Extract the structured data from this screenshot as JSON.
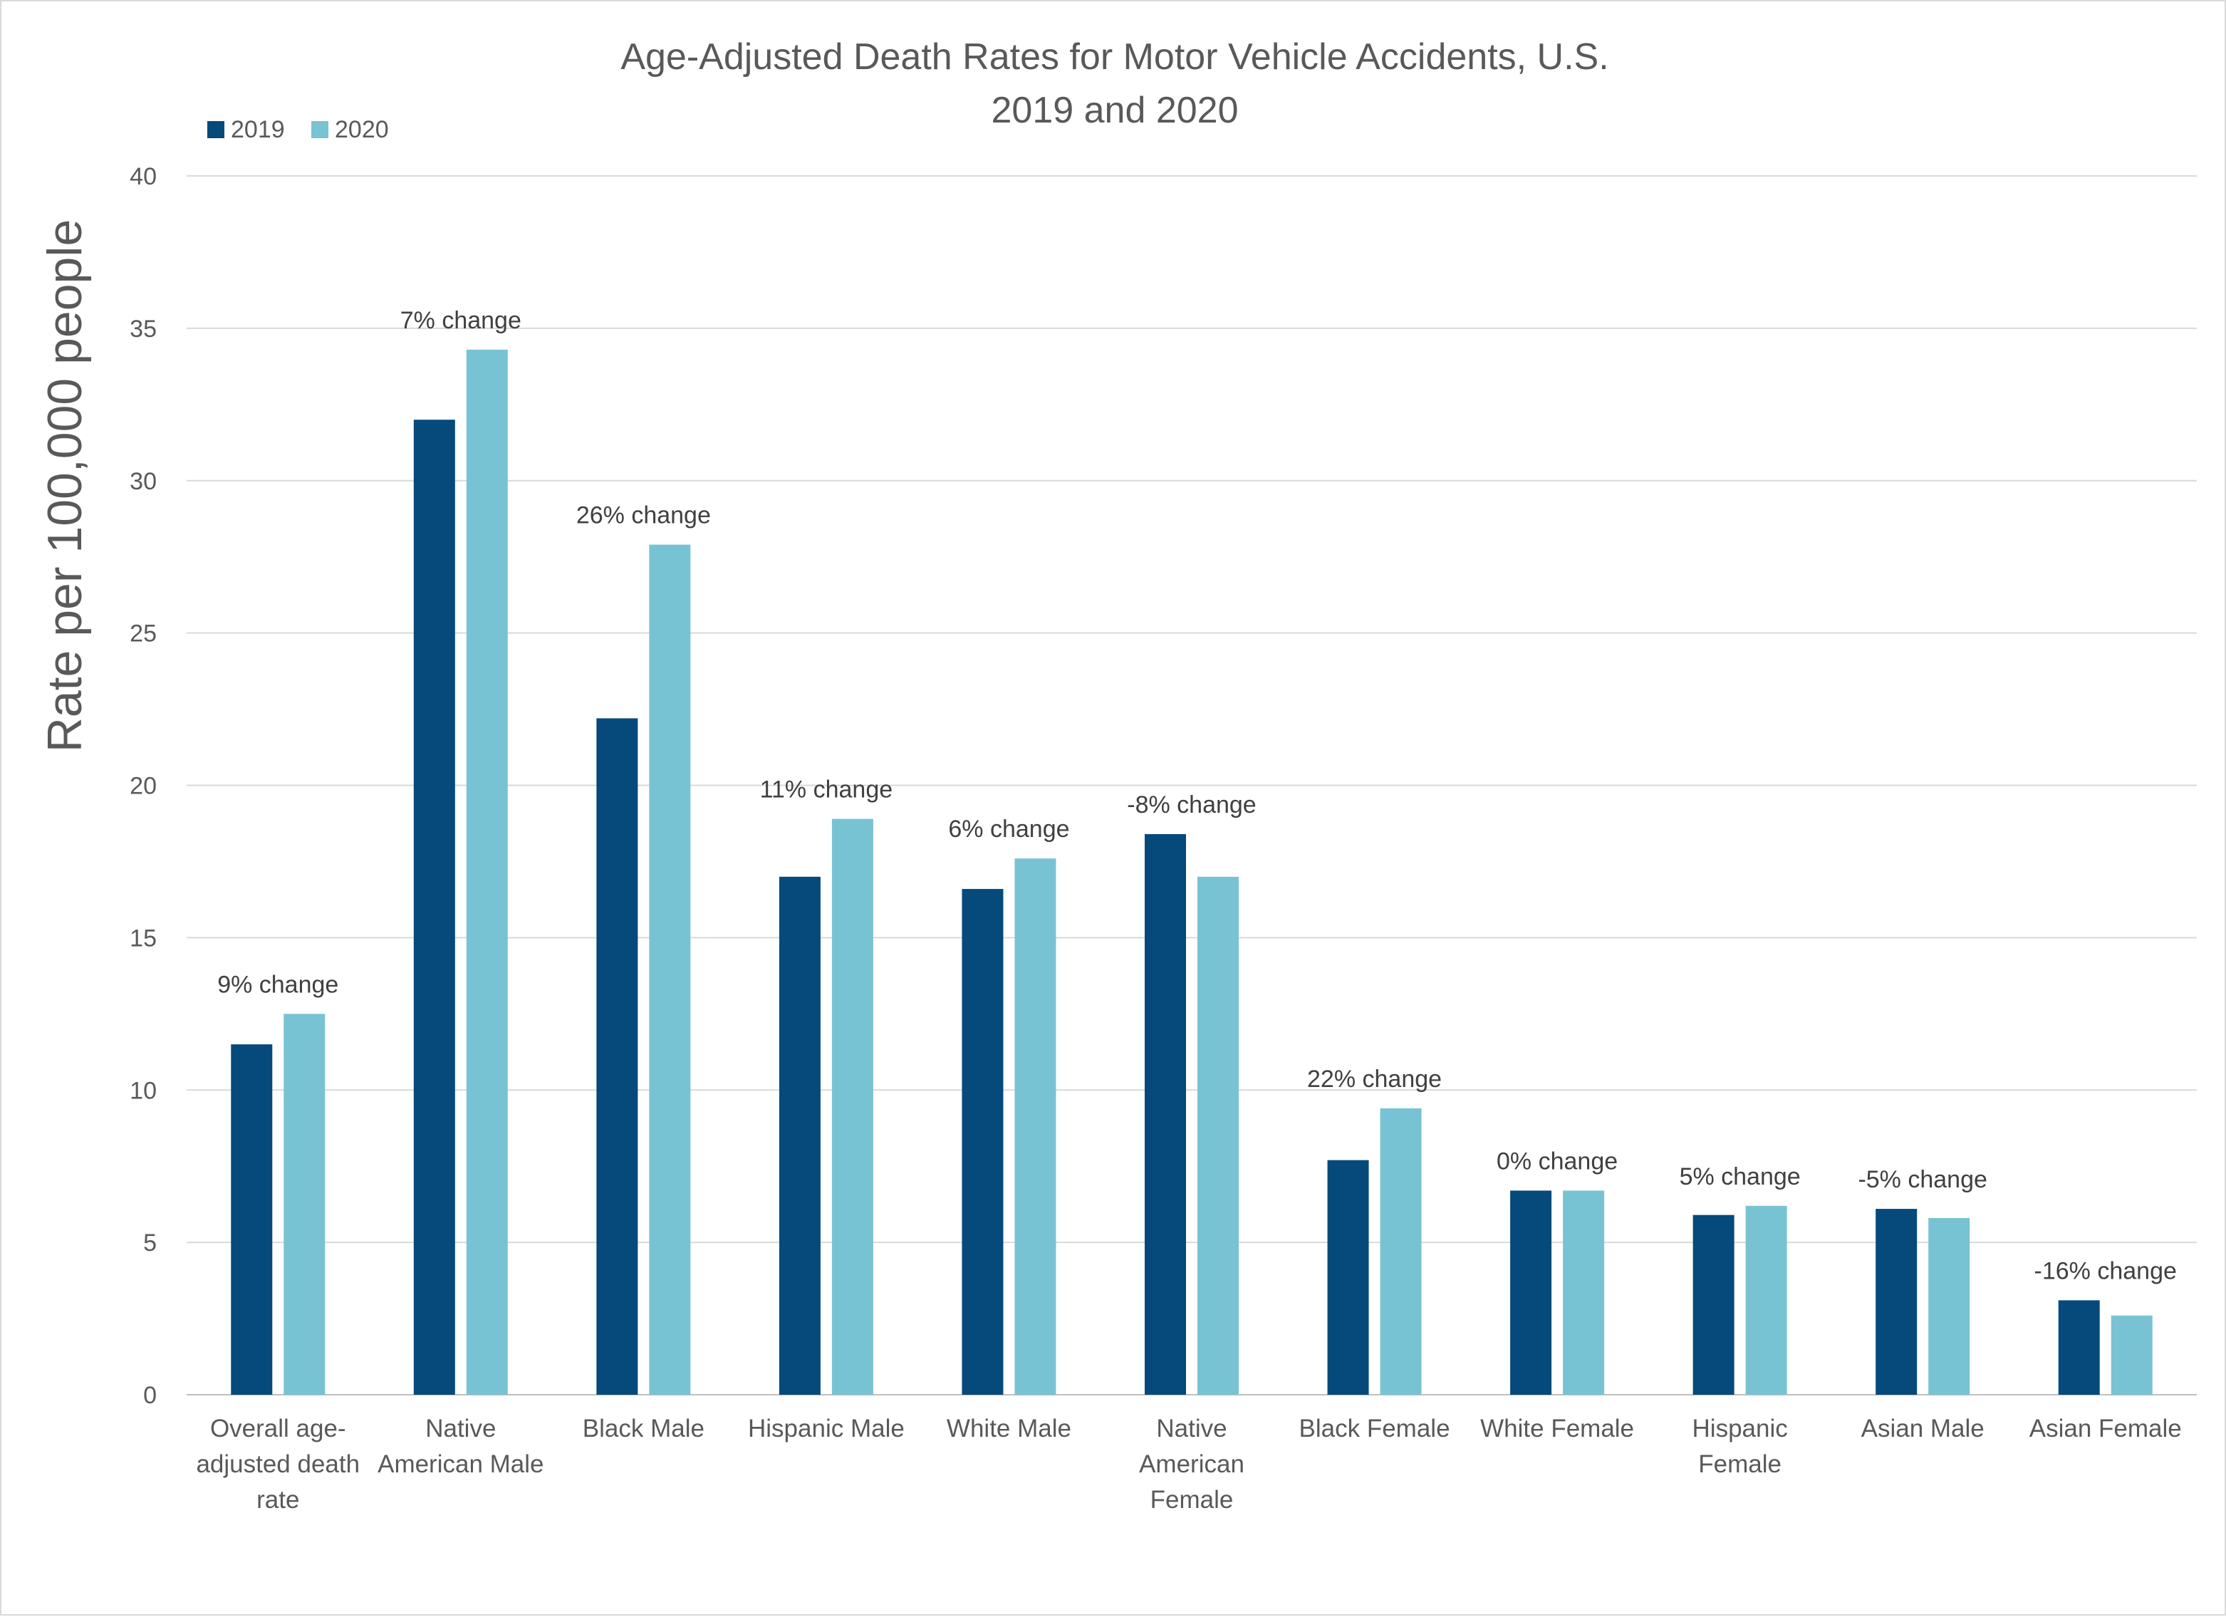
{
  "chart_data": {
    "type": "bar",
    "title": [
      "Age-Adjusted Death Rates for Motor Vehicle Accidents, U.S.",
      "2019 and 2020"
    ],
    "ylabel": "Rate per 100,000 people",
    "xlabel": "",
    "ylim": [
      0,
      40
    ],
    "yticks": [
      0,
      5,
      10,
      15,
      20,
      25,
      30,
      35,
      40
    ],
    "grid": true,
    "legend_position": "top-left",
    "categories": [
      "Overall age-adjusted death rate",
      "Native American Male",
      "Black Male",
      "Hispanic Male",
      "White Male",
      "Native American Female",
      "Black Female",
      "White Female",
      "Hispanic Female",
      "Asian Male",
      "Asian Female"
    ],
    "category_lines": [
      [
        "Overall age-",
        "adjusted death",
        "rate"
      ],
      [
        "Native",
        "American Male"
      ],
      [
        "Black Male"
      ],
      [
        "Hispanic Male"
      ],
      [
        "White Male"
      ],
      [
        "Native",
        "American",
        "Female"
      ],
      [
        "Black Female"
      ],
      [
        "White Female"
      ],
      [
        "Hispanic",
        "Female"
      ],
      [
        "Asian Male"
      ],
      [
        "Asian Female"
      ]
    ],
    "series": [
      {
        "name": "2019",
        "color": "#054a7a",
        "values": [
          11.5,
          32.0,
          22.2,
          17.0,
          16.6,
          18.4,
          7.7,
          6.7,
          5.9,
          6.1,
          3.1
        ]
      },
      {
        "name": "2020",
        "color": "#78c3d3",
        "values": [
          12.5,
          34.3,
          27.9,
          18.9,
          17.6,
          17.0,
          9.4,
          6.7,
          6.2,
          5.8,
          2.6
        ]
      }
    ],
    "annotations": [
      "9% change",
      "7% change",
      "26% change",
      "11% change",
      "6% change",
      "-8% change",
      "22% change",
      "0% change",
      "5% change",
      "-5% change",
      "-16% change"
    ]
  }
}
